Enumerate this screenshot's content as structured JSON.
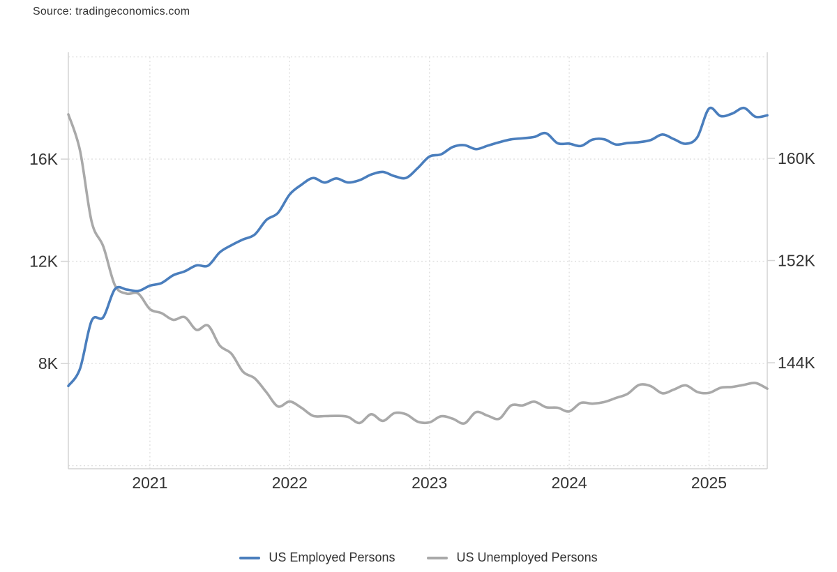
{
  "source": {
    "text": "Source: tradingeconomics.com"
  },
  "colors": {
    "employed_line": "#4a7ebd",
    "unemployed_line": "#a9a9a9",
    "grid": "#dfdfdf",
    "axis": "#d4d4d4",
    "text": "#333333",
    "background": "#ffffff"
  },
  "chart_data": {
    "type": "line",
    "title": "",
    "grid": true,
    "legend_position": "bottom",
    "x_unit": "month",
    "x": [
      "2020-06",
      "2020-07",
      "2020-08",
      "2020-09",
      "2020-10",
      "2020-11",
      "2020-12",
      "2021-01",
      "2021-02",
      "2021-03",
      "2021-04",
      "2021-05",
      "2021-06",
      "2021-07",
      "2021-08",
      "2021-09",
      "2021-10",
      "2021-11",
      "2021-12",
      "2022-01",
      "2022-02",
      "2022-03",
      "2022-04",
      "2022-05",
      "2022-06",
      "2022-07",
      "2022-08",
      "2022-09",
      "2022-10",
      "2022-11",
      "2022-12",
      "2023-01",
      "2023-02",
      "2023-03",
      "2023-04",
      "2023-05",
      "2023-06",
      "2023-07",
      "2023-08",
      "2023-09",
      "2023-10",
      "2023-11",
      "2023-12",
      "2024-01",
      "2024-02",
      "2024-03",
      "2024-04",
      "2024-05",
      "2024-06",
      "2024-07",
      "2024-08",
      "2024-09",
      "2024-10",
      "2024-11",
      "2024-12",
      "2025-01",
      "2025-02",
      "2025-03",
      "2025-04",
      "2025-05",
      "2025-06"
    ],
    "series": [
      {
        "name": "US Employed Persons",
        "axis": "right",
        "color": "#4a7ebd",
        "unit": "thousand persons",
        "values": [
          142182,
          143532,
          147288,
          147563,
          149766,
          149732,
          149613,
          150031,
          150239,
          150848,
          151160,
          151620,
          151602,
          152645,
          153199,
          153650,
          154035,
          155175,
          155732,
          157174,
          157926,
          158458,
          158105,
          158426,
          158111,
          158290,
          158732,
          158936,
          158608,
          158470,
          159244,
          160138,
          160315,
          160892,
          161031,
          160721,
          160994,
          161262,
          161484,
          161570,
          161676,
          161969,
          161183,
          161152,
          160968,
          161466,
          161491,
          161083,
          161199,
          161266,
          161434,
          161864,
          161496,
          161141,
          161661,
          163895,
          163307,
          163508,
          163944,
          163252,
          163366
        ]
      },
      {
        "name": "US Unemployed Persons",
        "axis": "left",
        "color": "#a9a9a9",
        "unit": "thousand persons",
        "values": [
          17750,
          16338,
          13550,
          12580,
          11061,
          10735,
          10736,
          10130,
          9972,
          9710,
          9812,
          9316,
          9484,
          8702,
          8384,
          7674,
          7419,
          6877,
          6319,
          6513,
          6270,
          5952,
          5941,
          5950,
          5912,
          5670,
          6014,
          5753,
          6059,
          6011,
          5722,
          5694,
          5936,
          5839,
          5657,
          6097,
          5957,
          5841,
          6355,
          6360,
          6506,
          6291,
          6268,
          6124,
          6458,
          6429,
          6492,
          6649,
          6811,
          7163,
          7115,
          6834,
          6984,
          7145,
          6886,
          6849,
          7052,
          7083,
          7165,
          7237,
          7015
        ]
      }
    ],
    "left_axis": {
      "min": 3880,
      "max": 20180,
      "grid_levels": [
        4000,
        8000,
        12000,
        16000,
        20000
      ],
      "ticks": [
        {
          "value": 8000,
          "label": "8K"
        },
        {
          "value": 12000,
          "label": "12K"
        },
        {
          "value": 16000,
          "label": "16K"
        }
      ]
    },
    "right_axis": {
      "min": 135700,
      "max": 168300,
      "ticks": [
        {
          "value": 144000,
          "label": "144K"
        },
        {
          "value": 152000,
          "label": "152K"
        },
        {
          "value": 160000,
          "label": "160K"
        }
      ]
    },
    "x_axis": {
      "ticks": [
        {
          "month": "2021-01",
          "label": "2021"
        },
        {
          "month": "2022-01",
          "label": "2022"
        },
        {
          "month": "2023-01",
          "label": "2023"
        },
        {
          "month": "2024-01",
          "label": "2024"
        },
        {
          "month": "2025-01",
          "label": "2025"
        }
      ]
    }
  },
  "legend": {
    "items": [
      {
        "label": "US Employed Persons"
      },
      {
        "label": "US Unemployed Persons"
      }
    ]
  }
}
